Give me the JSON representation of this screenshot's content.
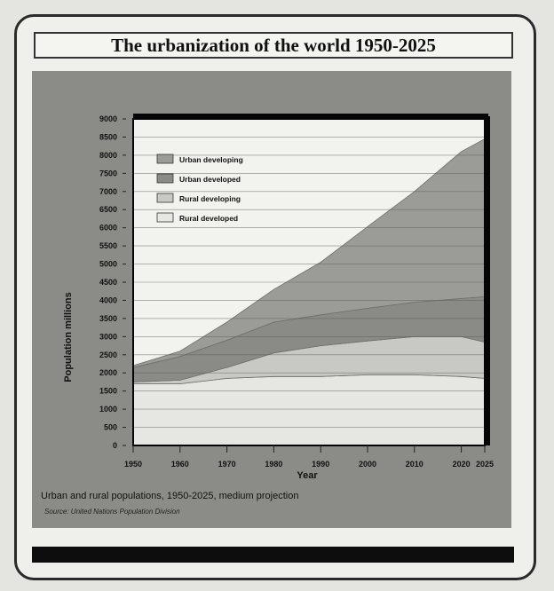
{
  "title": "The urbanization of the world 1950-2025",
  "caption": "Urban and rural populations, 1950-2025, medium projection",
  "source": "Source: United Nations Population Division",
  "colors": {
    "urban_developing": "#9b9b97",
    "urban_developed": "#8a8a86",
    "rural_developing": "#c8c8c4",
    "rural_developed": "#e6e6e2",
    "plot_border": "#050505"
  },
  "chart_data": {
    "type": "area",
    "stacked": true,
    "x": [
      1950,
      1960,
      1970,
      1980,
      1990,
      2000,
      2010,
      2020,
      2025
    ],
    "xlabel": "Year",
    "ylabel": "Population millions",
    "ylim": [
      0,
      9000
    ],
    "yticks": [
      0,
      500,
      1000,
      1500,
      2000,
      2500,
      3000,
      3500,
      4000,
      4500,
      5000,
      5500,
      6000,
      6500,
      7000,
      7500,
      8000,
      8500,
      9000
    ],
    "xticks": [
      "1950",
      "1960",
      "1970",
      "1980",
      "1990",
      "2000",
      "2010",
      "2020",
      "2025"
    ],
    "grid": true,
    "legend_position": "top-left",
    "series": [
      {
        "name": "Rural developed",
        "values": [
          1700,
          1700,
          1850,
          1900,
          1900,
          1950,
          1950,
          1900,
          1850
        ],
        "color": "#e6e6e2"
      },
      {
        "name": "Rural developing",
        "values": [
          50,
          100,
          300,
          650,
          850,
          930,
          1050,
          1100,
          1000
        ],
        "color": "#c8c8c4"
      },
      {
        "name": "Urban developed",
        "values": [
          400,
          650,
          750,
          850,
          850,
          900,
          950,
          1050,
          1250
        ],
        "color": "#8a8a86"
      },
      {
        "name": "Urban developing",
        "values": [
          50,
          150,
          500,
          900,
          1450,
          2250,
          3050,
          4050,
          4350
        ],
        "color": "#9b9b97"
      }
    ],
    "legend": [
      "Urban developing",
      "Urban developed",
      "Rural developing",
      "Rural developed"
    ]
  }
}
